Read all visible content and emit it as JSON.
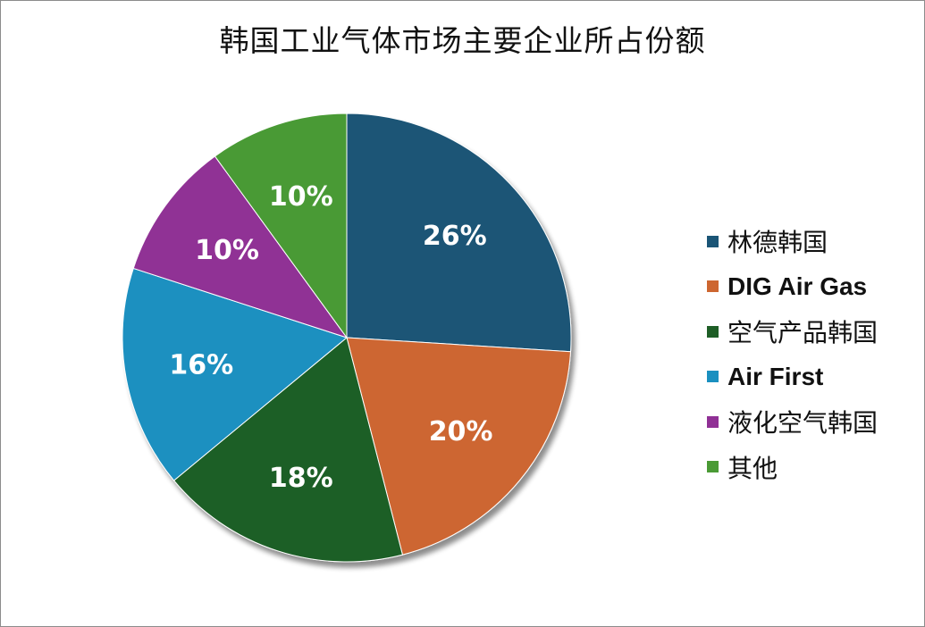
{
  "chart_data": {
    "type": "pie",
    "title": "韩国工业气体市场主要企业所占份额",
    "slices": [
      {
        "label": "林德韩国",
        "value": 26,
        "display": "26%",
        "color": "#1a5576"
      },
      {
        "label": "DIG Air Gas",
        "value": 20,
        "display": "20%",
        "color": "#cd6630"
      },
      {
        "label": "空气产品韩国",
        "value": 18,
        "display": "18%",
        "color": "#1e5e26"
      },
      {
        "label": "Air First",
        "value": 16,
        "display": "16%",
        "color": "#1a90c0"
      },
      {
        "label": "液化空气韩国",
        "value": 10,
        "display": "10%",
        "color": "#903095"
      },
      {
        "label": "其他",
        "value": 10,
        "display": "10%",
        "color": "#4a9a35"
      }
    ],
    "legend_position": "right"
  }
}
